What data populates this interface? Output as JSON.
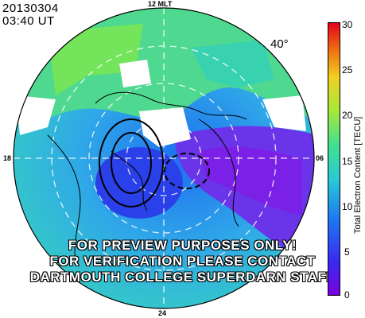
{
  "header": {
    "date": "20130304",
    "time": "03:40 UT"
  },
  "map": {
    "mlt_labels": {
      "top": "12 MLT",
      "left": "18",
      "right": "06",
      "bottom": "24"
    },
    "latitude_label": "40°"
  },
  "watermark": {
    "lines": [
      "FOR PREVIEW PURPOSES ONLY!",
      "FOR VERIFICATION PLEASE CONTACT",
      "DARTMOUTH COLLEGE SUPERDARN STAFF"
    ]
  },
  "colorbar": {
    "title": "Total Electron Content [TECU]",
    "ticks": [
      "30",
      "25",
      "20",
      "15",
      "10",
      "5",
      "0"
    ],
    "range": [
      0,
      30
    ]
  },
  "colors": {
    "high": "#e6001a",
    "mid": "#5ee05e",
    "low": "#7a00e0"
  }
}
